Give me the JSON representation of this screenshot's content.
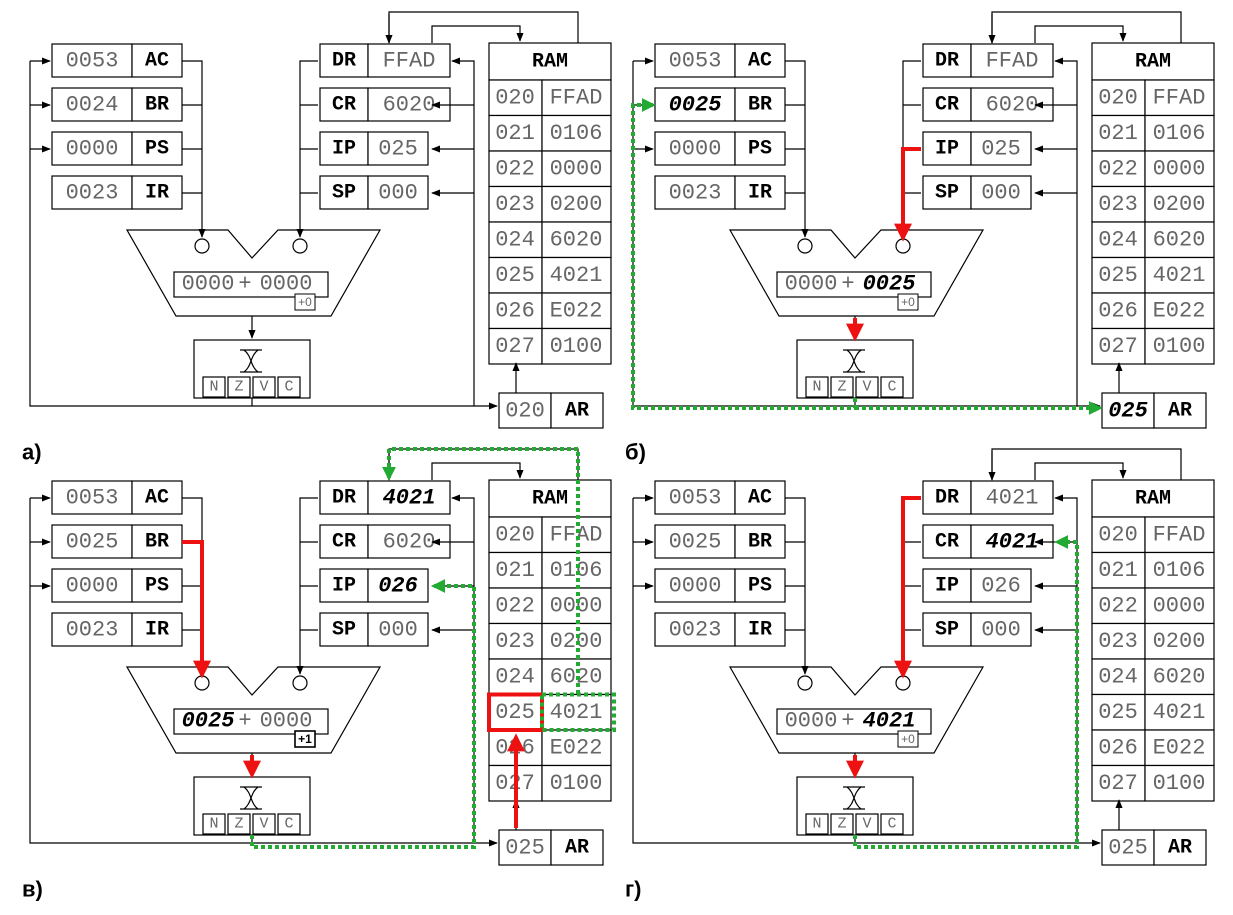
{
  "panels": [
    {
      "label": "а)",
      "registers_left": [
        {
          "name": "AC",
          "value": "0053"
        },
        {
          "name": "BR",
          "value": "0024"
        },
        {
          "name": "PS",
          "value": "0000"
        },
        {
          "name": "IR",
          "value": "0023"
        }
      ],
      "registers_right": [
        {
          "name": "DR",
          "value": "FFAD"
        },
        {
          "name": "CR",
          "value": "6020"
        },
        {
          "name": "IP",
          "value": "025"
        },
        {
          "name": "SP",
          "value": "000"
        }
      ],
      "alu": {
        "left": "0000",
        "op": "+",
        "right": "0000",
        "carry": "+0"
      },
      "flags": [
        "N",
        "Z",
        "V",
        "C"
      ],
      "ram": {
        "title": "RAM",
        "rows": [
          {
            "addr": "020",
            "val": "FFAD"
          },
          {
            "addr": "021",
            "val": "0106"
          },
          {
            "addr": "022",
            "val": "0000"
          },
          {
            "addr": "023",
            "val": "0200"
          },
          {
            "addr": "024",
            "val": "6020"
          },
          {
            "addr": "025",
            "val": "4021"
          },
          {
            "addr": "026",
            "val": "E022"
          },
          {
            "addr": "027",
            "val": "0100"
          }
        ]
      },
      "ar": {
        "name": "AR",
        "value": "020"
      },
      "bold_values": [],
      "ram_highlight": -1
    },
    {
      "label": "б)",
      "registers_left": [
        {
          "name": "AC",
          "value": "0053"
        },
        {
          "name": "BR",
          "value": "0025"
        },
        {
          "name": "PS",
          "value": "0000"
        },
        {
          "name": "IR",
          "value": "0023"
        }
      ],
      "registers_right": [
        {
          "name": "DR",
          "value": "FFAD"
        },
        {
          "name": "CR",
          "value": "6020"
        },
        {
          "name": "IP",
          "value": "025"
        },
        {
          "name": "SP",
          "value": "000"
        }
      ],
      "alu": {
        "left": "0000",
        "op": "+",
        "right": "0025",
        "carry": "+0"
      },
      "flags": [
        "N",
        "Z",
        "V",
        "C"
      ],
      "ram": {
        "title": "RAM",
        "rows": [
          {
            "addr": "020",
            "val": "FFAD"
          },
          {
            "addr": "021",
            "val": "0106"
          },
          {
            "addr": "022",
            "val": "0000"
          },
          {
            "addr": "023",
            "val": "0200"
          },
          {
            "addr": "024",
            "val": "6020"
          },
          {
            "addr": "025",
            "val": "4021"
          },
          {
            "addr": "026",
            "val": "E022"
          },
          {
            "addr": "027",
            "val": "0100"
          }
        ]
      },
      "ar": {
        "name": "AR",
        "value": "025"
      },
      "bold_values": [
        "BR",
        "AR",
        "alu_right"
      ],
      "ram_highlight": -1
    },
    {
      "label": "в)",
      "registers_left": [
        {
          "name": "AC",
          "value": "0053"
        },
        {
          "name": "BR",
          "value": "0025"
        },
        {
          "name": "PS",
          "value": "0000"
        },
        {
          "name": "IR",
          "value": "0023"
        }
      ],
      "registers_right": [
        {
          "name": "DR",
          "value": "4021"
        },
        {
          "name": "CR",
          "value": "6020"
        },
        {
          "name": "IP",
          "value": "026"
        },
        {
          "name": "SP",
          "value": "000"
        }
      ],
      "alu": {
        "left": "0025",
        "op": "+",
        "right": "0000",
        "carry": "+1"
      },
      "flags": [
        "N",
        "Z",
        "V",
        "C"
      ],
      "ram": {
        "title": "RAM",
        "rows": [
          {
            "addr": "020",
            "val": "FFAD"
          },
          {
            "addr": "021",
            "val": "0106"
          },
          {
            "addr": "022",
            "val": "0000"
          },
          {
            "addr": "023",
            "val": "0200"
          },
          {
            "addr": "024",
            "val": "6020"
          },
          {
            "addr": "025",
            "val": "4021"
          },
          {
            "addr": "026",
            "val": "E022"
          },
          {
            "addr": "027",
            "val": "0100"
          }
        ]
      },
      "ar": {
        "name": "AR",
        "value": "025"
      },
      "bold_values": [
        "DR",
        "IP",
        "alu_left",
        "carry"
      ],
      "ram_highlight": 5
    },
    {
      "label": "г)",
      "registers_left": [
        {
          "name": "AC",
          "value": "0053"
        },
        {
          "name": "BR",
          "value": "0025"
        },
        {
          "name": "PS",
          "value": "0000"
        },
        {
          "name": "IR",
          "value": "0023"
        }
      ],
      "registers_right": [
        {
          "name": "DR",
          "value": "4021"
        },
        {
          "name": "CR",
          "value": "4021"
        },
        {
          "name": "IP",
          "value": "026"
        },
        {
          "name": "SP",
          "value": "000"
        }
      ],
      "alu": {
        "left": "0000",
        "op": "+",
        "right": "4021",
        "carry": "+0"
      },
      "flags": [
        "N",
        "Z",
        "V",
        "C"
      ],
      "ram": {
        "title": "RAM",
        "rows": [
          {
            "addr": "020",
            "val": "FFAD"
          },
          {
            "addr": "021",
            "val": "0106"
          },
          {
            "addr": "022",
            "val": "0000"
          },
          {
            "addr": "023",
            "val": "0200"
          },
          {
            "addr": "024",
            "val": "6020"
          },
          {
            "addr": "025",
            "val": "4021"
          },
          {
            "addr": "026",
            "val": "E022"
          },
          {
            "addr": "027",
            "val": "0100"
          }
        ]
      },
      "ar": {
        "name": "AR",
        "value": "025"
      },
      "bold_values": [
        "CR",
        "alu_right"
      ],
      "ram_highlight": -1
    }
  ],
  "colors": {
    "line": "#000000",
    "red_path": "#ee1111",
    "green_path": "#22aa33",
    "value_text": "#666666"
  }
}
